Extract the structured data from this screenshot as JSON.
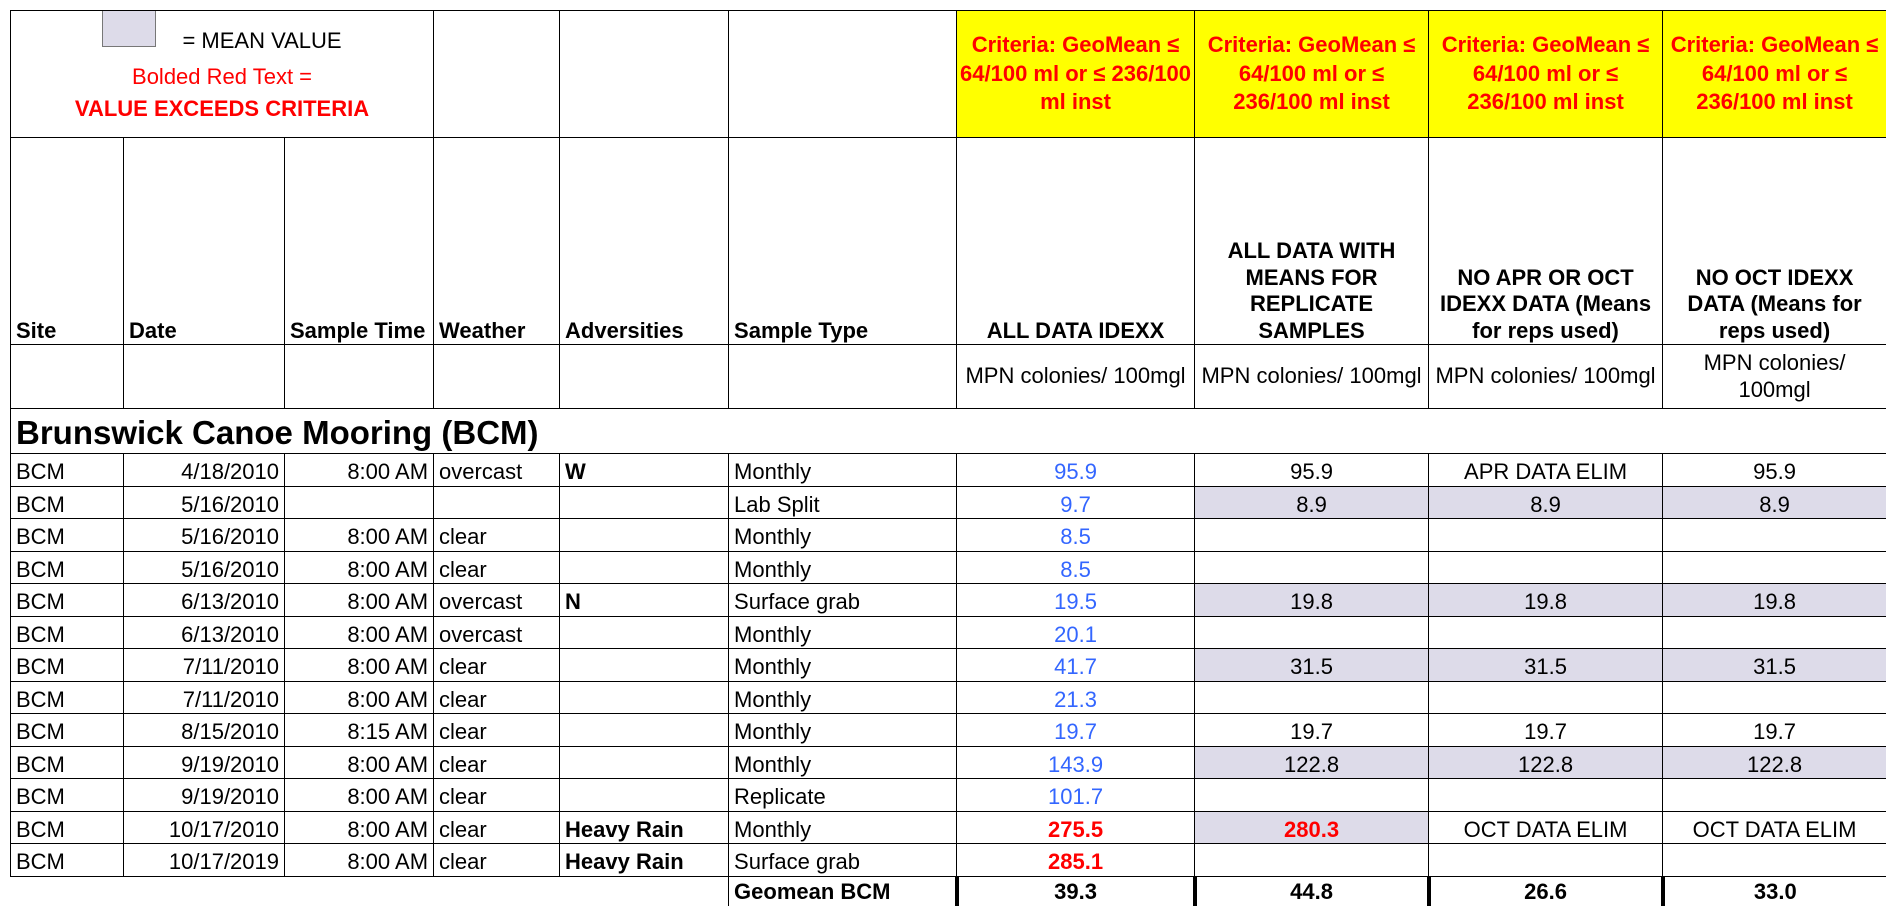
{
  "legend": {
    "mean": "= MEAN VALUE",
    "bolded": "Bolded Red Text =",
    "exceeds": "VALUE EXCEEDS CRITERIA"
  },
  "criteria": [
    "Criteria: GeoMean ≤ 64/100 ml or ≤ 236/100 ml inst",
    "Criteria: GeoMean ≤ 64/100 ml or ≤ 236/100 ml inst",
    "Criteria: GeoMean ≤ 64/100 ml or ≤ 236/100 ml inst",
    "Criteria: GeoMean ≤ 64/100 ml or ≤ 236/100 ml inst"
  ],
  "columns": [
    "Site",
    "Date",
    "Sample Time",
    "Weather",
    "Adversities",
    "Sample Type",
    "ALL DATA IDEXX",
    "ALL DATA WITH MEANS FOR REPLICATE SAMPLES",
    "NO APR OR OCT IDEXX DATA (Means for reps used)",
    "NO OCT IDEXX DATA (Means for reps used)"
  ],
  "units": [
    "MPN colonies/ 100mgl",
    "MPN colonies/ 100mgl",
    "MPN colonies/ 100mgl",
    "MPN colonies/ 100mgl"
  ],
  "section": "Brunswick Canoe Mooring (BCM)",
  "table": {
    "rows": [
      [
        "BCM",
        "4/18/2010",
        "8:00 AM",
        "overcast",
        "W",
        "Monthly",
        "95.9",
        "95.9",
        "APR DATA ELIM",
        "95.9"
      ],
      [
        "BCM",
        "5/16/2010",
        null,
        null,
        null,
        "Lab Split",
        "9.7",
        "8.9",
        "8.9",
        "8.9"
      ],
      [
        "BCM",
        "5/16/2010",
        "8:00 AM",
        "clear",
        null,
        "Monthly",
        "8.5",
        null,
        null,
        null
      ],
      [
        "BCM",
        "5/16/2010",
        "8:00 AM",
        "clear",
        null,
        "Monthly",
        "8.5",
        null,
        null,
        null
      ],
      [
        "BCM",
        "6/13/2010",
        "8:00 AM",
        "overcast",
        "N",
        "Surface grab",
        "19.5",
        "19.8",
        "19.8",
        "19.8"
      ],
      [
        "BCM",
        "6/13/2010",
        "8:00 AM",
        "overcast",
        null,
        "Monthly",
        "20.1",
        null,
        null,
        null
      ],
      [
        "BCM",
        "7/11/2010",
        "8:00 AM",
        "clear",
        null,
        "Monthly",
        "41.7",
        "31.5",
        "31.5",
        "31.5"
      ],
      [
        "BCM",
        "7/11/2010",
        "8:00 AM",
        "clear",
        null,
        "Monthly",
        "21.3",
        null,
        null,
        null
      ],
      [
        "BCM",
        "8/15/2010",
        "8:15 AM",
        "clear",
        null,
        "Monthly",
        "19.7",
        "19.7",
        "19.7",
        "19.7"
      ],
      [
        "BCM",
        "9/19/2010",
        "8:00 AM",
        "clear",
        null,
        "Monthly",
        "143.9",
        "122.8",
        "122.8",
        "122.8"
      ],
      [
        "BCM",
        "9/19/2010",
        "8:00 AM",
        "clear",
        null,
        "Replicate",
        "101.7",
        null,
        null,
        null
      ],
      [
        "BCM",
        "10/17/2010",
        "8:00 AM",
        "clear",
        "Heavy Rain",
        "Monthly",
        "275.5",
        "280.3",
        "OCT DATA ELIM",
        "OCT DATA ELIM"
      ],
      [
        "BCM",
        "10/17/2019",
        "8:00 AM",
        "clear",
        "Heavy Rain",
        "Surface grab",
        "285.1",
        null,
        null,
        null
      ]
    ]
  },
  "geomean": {
    "label": "Geomean BCM",
    "values": [
      "39.3",
      "44.8",
      "26.6",
      "33.0"
    ]
  }
}
